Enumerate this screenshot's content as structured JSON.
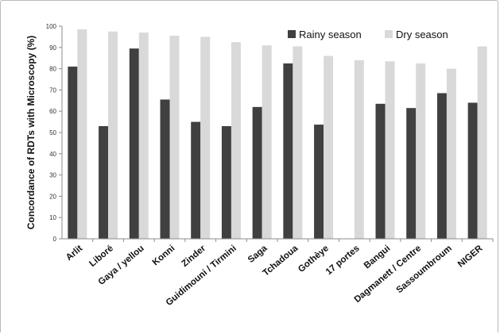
{
  "chart_data": {
    "type": "bar",
    "title": "",
    "ylabel": "Concordance of RDTs with Microscopy (%)",
    "xlabel": "",
    "ylim": [
      0,
      100
    ],
    "yticks": [
      0,
      10,
      20,
      30,
      40,
      50,
      60,
      70,
      80,
      90,
      100
    ],
    "grid": false,
    "legend_position": "top-right",
    "categories": [
      "Arlit",
      "Liboré",
      "Gaya / yellou",
      "Konni",
      "Zinder",
      "Guidimouni / Tirmini",
      "Saga",
      "Tchadoua",
      "Gothèye",
      "17 portes",
      "Bangui",
      "Dagmanett / Centre",
      "Sassoumbroum",
      "NIGER"
    ],
    "series": [
      {
        "name": "Rainy season",
        "color": "#404040",
        "values": [
          81,
          53,
          89.5,
          65.5,
          55,
          53,
          62,
          82.5,
          53.7,
          null,
          63.5,
          61.5,
          68.5,
          64
        ]
      },
      {
        "name": "Dry season",
        "color": "#d9d9d9",
        "values": [
          98.5,
          97.5,
          97,
          95.5,
          95,
          92.5,
          91,
          90.5,
          86,
          84,
          83.5,
          82.5,
          80,
          90.5
        ]
      }
    ]
  }
}
